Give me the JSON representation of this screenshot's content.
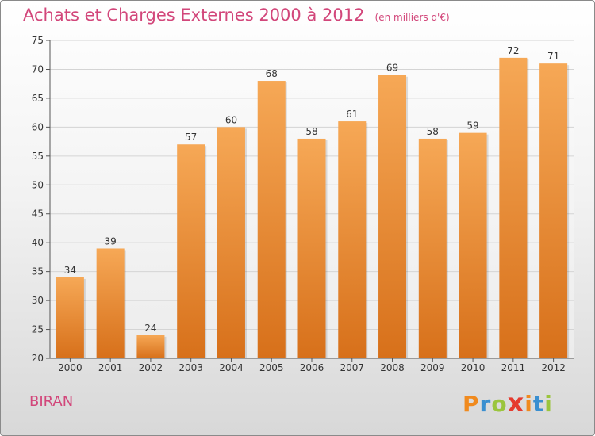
{
  "header": {
    "title": "Achats et Charges Externes 2000 à 2012",
    "subtitle": "(en milliers d'€)"
  },
  "footer": {
    "commune": "BIRAN",
    "logo_text": "Proxiti"
  },
  "colors": {
    "title": "#d2467a",
    "bar_light": "#f6a856",
    "bar_dark": "#d7701a",
    "logo_letters": [
      "#f08a1e",
      "#3a8fd0",
      "#9bc53d",
      "#e53a2e",
      "#f08a1e",
      "#3a8fd0",
      "#9bc53d"
    ]
  },
  "chart_data": {
    "type": "bar",
    "categories": [
      "2000",
      "2001",
      "2002",
      "2003",
      "2004",
      "2005",
      "2006",
      "2007",
      "2008",
      "2009",
      "2010",
      "2011",
      "2012"
    ],
    "values": [
      34,
      39,
      24,
      57,
      60,
      68,
      58,
      61,
      69,
      58,
      59,
      72,
      71
    ],
    "ylim": [
      20,
      75
    ],
    "yticks": [
      20,
      25,
      30,
      35,
      40,
      45,
      50,
      55,
      60,
      65,
      70,
      75
    ],
    "grid": true,
    "data_labels": true
  }
}
